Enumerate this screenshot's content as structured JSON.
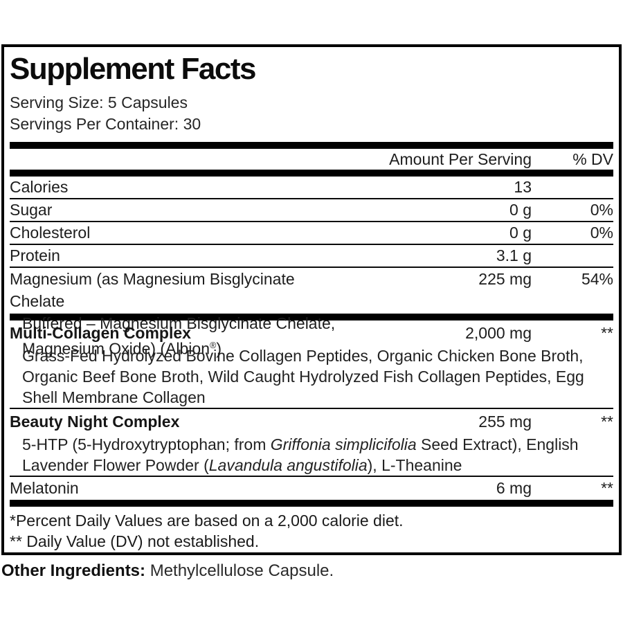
{
  "colors": {
    "text": "#1d1d1d",
    "bars_and_border": "#000000",
    "background": "#ffffff"
  },
  "panel": {
    "title": "Supplement Facts",
    "serving_size": "Serving Size: 5 Capsules",
    "servings_per_container": "Servings Per Container: 30",
    "columns": {
      "amount": "Amount Per Serving",
      "dv": "% DV"
    },
    "basic_rows": [
      {
        "name": "Calories",
        "amount": "13",
        "dv": ""
      },
      {
        "name": "Sugar",
        "amount": "0 g",
        "dv": "0%"
      },
      {
        "name": "Cholesterol",
        "amount": "0 g",
        "dv": "0%"
      },
      {
        "name": "Protein",
        "amount": "3.1 g",
        "dv": ""
      }
    ],
    "magnesium": {
      "name_line1": "Magnesium (as Magnesium Bisglycinate Chelate",
      "name_line2_segments": [
        {
          "text": "Buffered – Magnesium Bisglycinate Chelate, Magnesium Oxide) (Albion"
        },
        {
          "text": "®",
          "sup": true
        },
        {
          "text": ")"
        }
      ],
      "amount": "225 mg",
      "dv": "54%"
    },
    "sections": [
      {
        "name": "Multi-Collagen Complex",
        "amount": "2,000 mg",
        "dv": "**",
        "ingredient_lines": [
          [
            {
              "text": "Grass-Fed Hydrolyzed Bovine Collagen Peptides, Organic Chicken Bone Broth,"
            }
          ],
          [
            {
              "text": "Organic Beef Bone Broth, Wild Caught Hydrolyzed Fish Collagen Peptides, Egg"
            }
          ],
          [
            {
              "text": "Shell Membrane Collagen"
            }
          ]
        ]
      },
      {
        "name": "Beauty Night Complex",
        "amount": "255 mg",
        "dv": "**",
        "ingredient_lines": [
          [
            {
              "text": "5-HTP (5-Hydroxytryptophan; from "
            },
            {
              "text": "Griffonia simplicifolia",
              "italic": true
            },
            {
              "text": " Seed Extract), English"
            }
          ],
          [
            {
              "text": "Lavender Flower Powder ("
            },
            {
              "text": "Lavandula angustifolia",
              "italic": true
            },
            {
              "text": "), L-Theanine"
            }
          ]
        ]
      }
    ],
    "melatonin": {
      "name": "Melatonin",
      "amount": "6 mg",
      "dv": "**"
    },
    "footnotes": [
      "*Percent Daily Values are based on a 2,000 calorie diet.",
      "** Daily Value (DV) not established."
    ]
  },
  "other_ingredients": {
    "label": "Other Ingredients:",
    "value": " Methylcellulose Capsule."
  }
}
